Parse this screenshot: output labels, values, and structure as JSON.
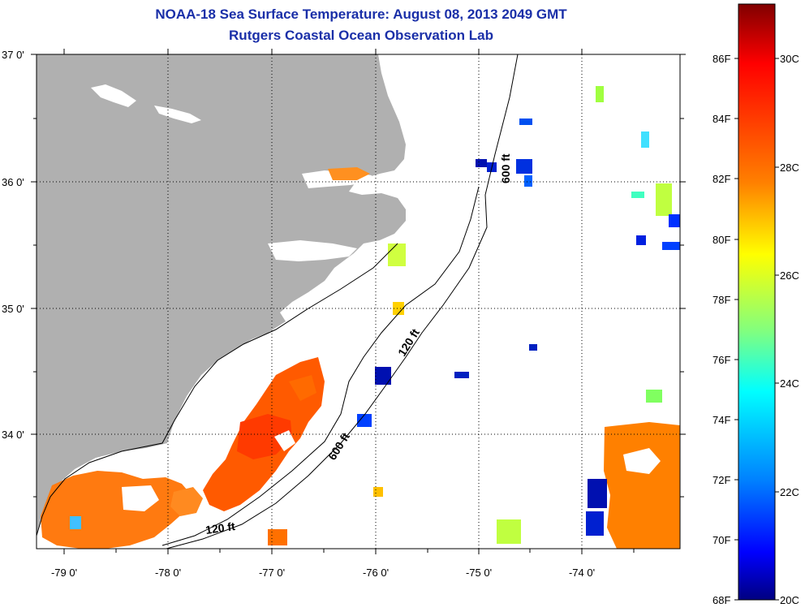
{
  "header": {
    "title": "NOAA-18 Sea Surface Temperature:  August 08, 2013 2049 GMT",
    "subtitle": "Rutgers Coastal Ocean Observation Lab"
  },
  "axes": {
    "y_ticks": [
      "37 0'",
      "36 0'",
      "35 0'",
      "34 0'"
    ],
    "x_ticks": [
      "-79 0'",
      "-78 0'",
      "-77 0'",
      "-76 0'",
      "-75 0'",
      "-74 0'"
    ],
    "grid": "dotted"
  },
  "depth_labels": {
    "shelf_upper": "120 ft",
    "shelf_lower": "120 ft",
    "slope_upper": "600 ft",
    "slope_lower": "600 ft"
  },
  "colorbar": {
    "fahrenheit_labels": [
      "86F",
      "84F",
      "82F",
      "80F",
      "78F",
      "76F",
      "74F",
      "72F",
      "70F",
      "68F"
    ],
    "celsius_labels": [
      "30C",
      "28C",
      "26C",
      "24C",
      "22C",
      "20C"
    ],
    "colors": [
      "#800000",
      "#ff0000",
      "#ff8000",
      "#ffff00",
      "#80ff80",
      "#00ffff",
      "#0080ff",
      "#0000ff",
      "#000080"
    ]
  },
  "colors": {
    "land": "#b0b0b0",
    "ocean_nodata": "#ffffff",
    "title_text": "#1a2fa8"
  }
}
